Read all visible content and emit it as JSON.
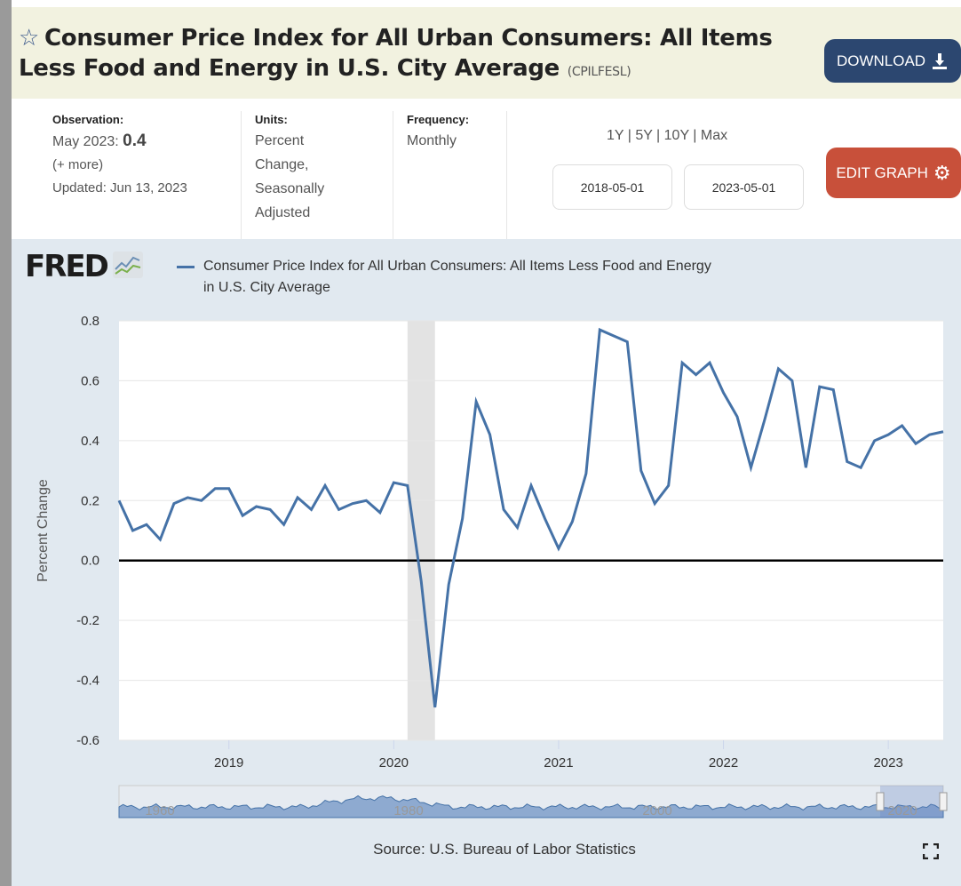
{
  "header": {
    "title": "Consumer Price Index for All Urban Consumers: All Items Less Food and Energy in U.S. City Average",
    "series_code": "(CPILFESL)",
    "download_label": "DOWNLOAD"
  },
  "meta": {
    "observation_label": "Observation:",
    "observation_date": "May 2023:",
    "observation_value": "0.4",
    "more": "(+ more)",
    "updated": "Updated: Jun 13, 2023",
    "units_label": "Units:",
    "units_lines": [
      "Percent",
      "Change,",
      "Seasonally",
      "Adjusted"
    ],
    "frequency_label": "Frequency:",
    "frequency": "Monthly",
    "ranges": [
      "1Y",
      "5Y",
      "10Y",
      "Max"
    ],
    "start_date": "2018-05-01",
    "end_date": "2023-05-01",
    "edit_label": "EDIT GRAPH"
  },
  "brand": "FRED",
  "chart_data": {
    "type": "line",
    "title": "Consumer Price Index for All Urban Consumers: All Items Less Food and Energy in U.S. City Average",
    "legend": "Consumer Price Index for All Urban Consumers: All Items Less Food and Energy in U.S. City Average",
    "legend_line1": "Consumer Price Index for All Urban Consumers: All Items Less Food and Energy",
    "legend_line2": "in U.S. City Average",
    "ylabel": "Percent Change",
    "xlabel": "",
    "ylim": [
      -0.6,
      0.8
    ],
    "yticks": [
      "0.8",
      "0.6",
      "0.4",
      "0.2",
      "0.0",
      "-0.2",
      "-0.4",
      "-0.6"
    ],
    "xticks": [
      "2019",
      "2020",
      "2021",
      "2022",
      "2023"
    ],
    "x_start": "2018-05",
    "x_end": "2023-05",
    "recession": [
      "2020-02",
      "2020-04"
    ],
    "series": [
      {
        "name": "CPILFESL",
        "color": "#4572a7",
        "values": [
          0.2,
          0.1,
          0.12,
          0.07,
          0.19,
          0.21,
          0.2,
          0.24,
          0.24,
          0.15,
          0.18,
          0.17,
          0.12,
          0.21,
          0.17,
          0.25,
          0.17,
          0.19,
          0.2,
          0.16,
          0.26,
          0.25,
          -0.07,
          -0.49,
          -0.08,
          0.14,
          0.53,
          0.42,
          0.17,
          0.11,
          0.25,
          0.14,
          0.04,
          0.13,
          0.29,
          0.77,
          0.75,
          0.73,
          0.3,
          0.19,
          0.25,
          0.66,
          0.62,
          0.66,
          0.56,
          0.48,
          0.31,
          0.47,
          0.64,
          0.6,
          0.31,
          0.58,
          0.57,
          0.33,
          0.31,
          0.4,
          0.42,
          0.45,
          0.39,
          0.42,
          0.43
        ]
      }
    ],
    "navigator_labels": [
      "1960",
      "1980",
      "2000",
      "2020"
    ],
    "source": "Source: U.S. Bureau of Labor Statistics"
  }
}
